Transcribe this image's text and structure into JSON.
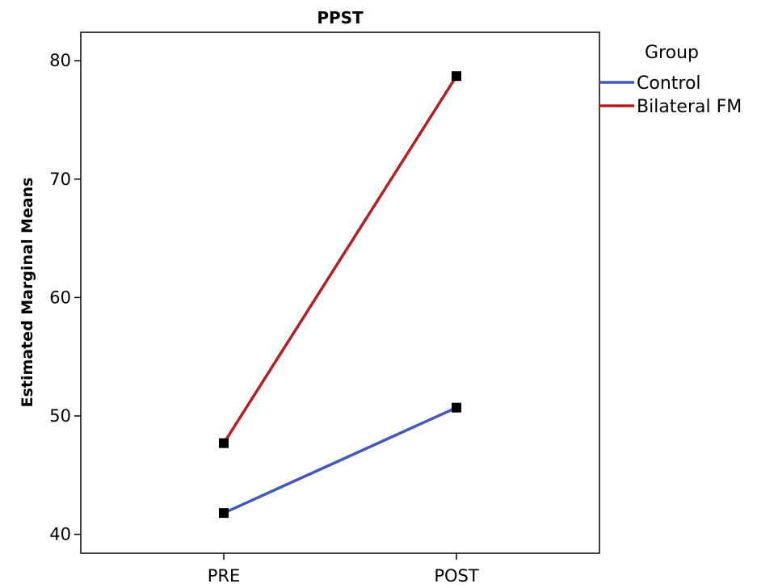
{
  "chart_data": {
    "type": "line",
    "title": "PPST",
    "xlabel": "",
    "ylabel": "Estimated Marginal Means",
    "categories": [
      "PRE",
      "POST"
    ],
    "ylim": [
      38.4,
      82.4
    ],
    "yticks": [
      40,
      50,
      60,
      70,
      80
    ],
    "grid": false,
    "legend": {
      "title": "Group",
      "placement": "outside-right-top"
    },
    "marker": "square",
    "series": [
      {
        "name": "Control",
        "values": [
          41.8,
          50.7
        ],
        "color": "#4259b8"
      },
      {
        "name": "Bilateral FM",
        "values": [
          47.7,
          78.7
        ],
        "color": "#b51f24"
      }
    ]
  }
}
